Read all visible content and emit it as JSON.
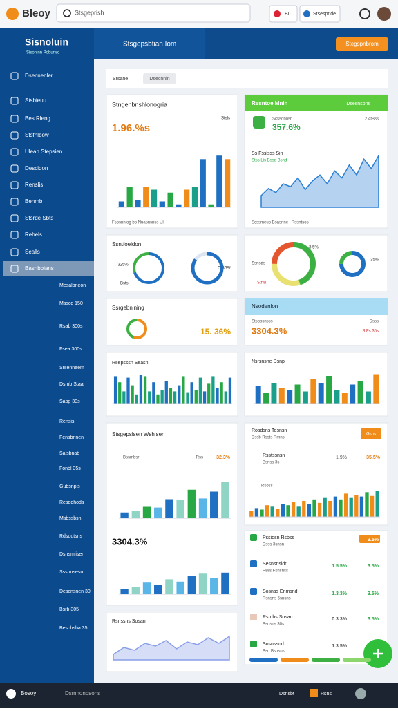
{
  "topbar": {
    "logo": "Bleoy",
    "search": "Stsgeprish",
    "chip": "Bu",
    "button": "Stsespride"
  },
  "sidebar": {
    "title": "Sisnoluin",
    "subtitle": "Sisoninn Pobunsd",
    "items": [
      "Dsecnenler",
      "Stsbieuu",
      "Bes Rleng",
      "Stsfnlbow",
      "Ulean Stepsien",
      "Descidon",
      "Renslis",
      "Benmb",
      "Stsrde Sbts",
      "Rehels",
      "Sealls",
      "Basnbbians"
    ],
    "subitems": [
      "Mesalbneon",
      "Msscd 150",
      "Rsab 300s",
      "Fsea 300s",
      "Srsenneem",
      "Dsmb Staa",
      "Sabg 30s",
      "Rensis",
      "Fensbnnen",
      "Salsbnab",
      "Fonbl 35s",
      "Gubsnpls",
      "Resddhods",
      "Msbssbsn",
      "Rdsoutsns",
      "Dsnsmlisen",
      "Sssnnsesn",
      "Descnsnen 30",
      "Bsrb 305",
      "Bescbsba 35"
    ]
  },
  "header": {
    "search": "Stsgepsbtian Iom",
    "button": "Stegspnbrom"
  },
  "filter": {
    "label": "Srsane",
    "chip": "Dsecnnin"
  },
  "cards": {
    "c1": {
      "title": "Stngenbnshlonogria",
      "value": "1.96.%s",
      "legend": "Stsls",
      "note": "Fsosnniog bp Nuasnsnss Ul"
    },
    "c2": {
      "header": "Resntoe Mnin",
      "header_right": "Dsesnsons",
      "sub": "Scssonosn",
      "value": "357.6%",
      "sub_right": "2.4tBss",
      "chart_title": "Ss Fsslsss Sin",
      "chart_sub": "Stss Lis Bssd Bsnd",
      "note": "Scssmeuo Bsasnne | Rssntsos"
    },
    "c3": {
      "title": "Ssntfoeldon",
      "label_a": "325%",
      "label_b": "0.36%",
      "legend": "Bsts"
    },
    "c4": {
      "label_a": "Ssnsds",
      "label_b": "3.5%",
      "label_c": "Stnsi",
      "label_d": "35%"
    },
    "c5": {
      "title": "Ssrgebnlning",
      "value": "15. 36%"
    },
    "c6": {
      "header": "Nsodenlon",
      "sub": "Stsoosnsss",
      "value": "3304.3%",
      "right_a": "Dsss",
      "right_b": "S.Fs 35s"
    },
    "c7": {
      "title": "Rsepsssn Seasn"
    },
    "c8": {
      "title": "Nsrsnsne Dsnp"
    },
    "c9": {
      "title": "Stsgepslsen Wshisen",
      "sub": "Bssmbsr",
      "right_a": "Rss",
      "right_b": "32.3%",
      "value": "3304.3%"
    },
    "c10": {
      "title": "Rosdsns Tosnsn",
      "sub": "Dssb Rssts Rmns",
      "badge": "Gsns",
      "row_title": "Rsstssnsn",
      "row_sub": "Bsnss 3s",
      "row_a": "1.9%",
      "row_b": "35.5%",
      "row2": "Rsoss"
    },
    "c11": {
      "title": "Rsnssns Sosan"
    }
  },
  "stats": [
    {
      "title": "Pssidsn Rsbss",
      "sub": "Dsss 3snsn",
      "b": "3.5%"
    },
    {
      "title": "Sesnsnsidr",
      "sub": "Psss Fsnsnss",
      "a": "1.5.5%",
      "b": "3.5%"
    },
    {
      "title": "Sosnss Enmsnd",
      "sub": "Rsnsns 5snsns",
      "a": "1.3.3%",
      "b": "3.5%"
    },
    {
      "title": "Rsmbs Sosan",
      "sub": "Bsnsns 30s",
      "a": "0.3.3%",
      "b": "3.5%"
    },
    {
      "title": "Sosnssnd",
      "sub": "Bsn Bsnsns",
      "a": "1.3.5%"
    }
  ],
  "footer": {
    "brand": "Bosoy",
    "tab": "Dsmnonbsons",
    "right": "Dsnsbt",
    "chip": "Rsns"
  },
  "charts": {
    "b1": {
      "ylim": [
        0,
        100
      ],
      "colors": [
        "#1f6fc2",
        "#27a844",
        "#1f6fc2",
        "#f08c1a",
        "#1aa08a"
      ],
      "values": [
        10,
        35,
        12,
        35,
        30,
        10,
        25,
        5,
        30,
        35,
        82,
        5,
        88,
        82
      ]
    },
    "a1": {
      "ylim": [
        0,
        100
      ],
      "color": "#2a7fd4",
      "values": [
        20,
        32,
        25,
        40,
        35,
        50,
        30,
        45,
        55,
        40,
        62,
        50,
        72,
        55,
        82,
        66,
        88
      ]
    },
    "d1": {
      "colors": [
        "#1f6fc2",
        "#3cb043"
      ],
      "values": [
        70,
        30
      ]
    },
    "d2": {
      "colors": [
        "#1f6fc2",
        "#dbe6f2"
      ],
      "values": [
        85,
        15
      ]
    },
    "d3": {
      "colors": [
        "#3cb043",
        "#e8e070",
        "#e4572e"
      ],
      "values": [
        45,
        30,
        25
      ]
    },
    "d4": {
      "colors": [
        "#1f6fc2",
        "#3cb043"
      ],
      "values": [
        75,
        25
      ]
    },
    "d5": {
      "colors": [
        "#f08c1a",
        "#3cb043"
      ],
      "values": [
        55,
        45
      ]
    },
    "b2": {
      "ylim": [
        0,
        100
      ],
      "colors": [
        "#1f6fc2",
        "#27a844",
        "#1aa08a"
      ],
      "values": [
        90,
        70,
        40,
        85,
        60,
        30,
        95,
        90,
        40,
        70,
        30,
        45,
        75,
        50,
        40,
        60,
        90,
        35,
        70,
        45,
        85,
        40,
        65,
        90,
        50,
        70,
        40,
        85
      ]
    },
    "b3": {
      "ylim": [
        0,
        100
      ],
      "colors": [
        "#1f6fc2",
        "#27a844",
        "#1aa08a",
        "#f08c1a"
      ],
      "values": [
        50,
        30,
        60,
        45,
        40,
        55,
        35,
        70,
        60,
        80,
        40,
        30,
        55,
        65,
        35,
        85
      ]
    },
    "b4": {
      "ylim": [
        0,
        100
      ],
      "colors": [
        "#1f6fc2",
        "#8fd4c4",
        "#27a844",
        "#5bb6e8"
      ],
      "values": [
        15,
        20,
        30,
        28,
        50,
        48,
        75,
        52,
        70,
        95
      ]
    },
    "b5": {
      "ylim": [
        0,
        100
      ],
      "colors": [
        "#1f6fc2",
        "#8fd4c4",
        "#5bb6e8"
      ],
      "values": [
        15,
        22,
        35,
        28,
        45,
        38,
        55,
        62,
        48,
        65
      ]
    },
    "b6": {
      "ylim": [
        0,
        100
      ],
      "colors": [
        "#f08c1a",
        "#1f6fc2",
        "#27a844",
        "#f08c1a",
        "#1aa08a"
      ],
      "values": [
        20,
        30,
        25,
        40,
        35,
        28,
        45,
        40,
        50,
        35,
        55,
        45,
        60,
        48,
        65,
        55,
        70,
        60,
        80,
        65,
        75,
        70,
        85,
        72,
        90
      ]
    },
    "a2": {
      "ylim": [
        0,
        100
      ],
      "color": "#8a9ee8",
      "values": [
        20,
        45,
        35,
        60,
        50,
        70,
        40,
        65,
        55,
        80,
        60,
        85
      ]
    },
    "p1": {
      "colors": [
        "#1f6fc2",
        "#f08c1a",
        "#3cb043",
        "#8cd66e"
      ],
      "values": [
        25,
        25,
        25,
        25
      ]
    }
  }
}
